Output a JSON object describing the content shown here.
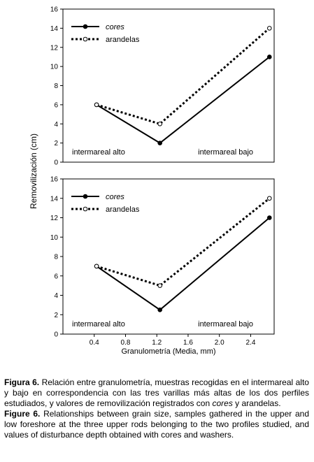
{
  "axis_labels": {
    "y": "Removilización (cm)",
    "x": "Granulometría (Media, mm)"
  },
  "chart_data": [
    {
      "type": "line",
      "xlim": [
        0,
        2.7
      ],
      "ylim": [
        0,
        16
      ],
      "yticks": [
        0,
        2,
        4,
        6,
        8,
        10,
        12,
        14,
        16
      ],
      "x": [
        0.43,
        1.24,
        2.64
      ],
      "series": [
        {
          "name": "cores",
          "color": "#000000",
          "line_style": "solid",
          "marker": "filled",
          "values": [
            6,
            2,
            11
          ]
        },
        {
          "name": "arandelas",
          "color": "#000000",
          "line_style": "dotted",
          "marker": "open",
          "values": [
            6,
            4,
            14
          ]
        }
      ],
      "annotations": [
        "intermareal alto",
        "intermareal bajo"
      ]
    },
    {
      "type": "line",
      "xlim": [
        0,
        2.7
      ],
      "ylim": [
        0,
        16
      ],
      "yticks": [
        0,
        2,
        4,
        6,
        8,
        10,
        12,
        14,
        16
      ],
      "xticks": [
        0.4,
        0.8,
        1.2,
        1.6,
        {
          "value": 2,
          "label": "2.0"
        },
        2.4
      ],
      "x": [
        0.43,
        1.24,
        2.64
      ],
      "series": [
        {
          "name": "cores",
          "color": "#000000",
          "line_style": "solid",
          "marker": "filled",
          "values": [
            7,
            2.5,
            12
          ]
        },
        {
          "name": "arandelas",
          "color": "#000000",
          "line_style": "dotted",
          "marker": "open",
          "values": [
            7,
            5,
            14
          ]
        }
      ],
      "annotations": [
        "intermareal alto",
        "intermareal bajo"
      ]
    }
  ],
  "caption": {
    "es": {
      "label": "Figura 6.",
      "text1": " Relación entre granulometría, muestras recogidas en el intermareal alto y bajo en correspondencia con las tres varillas más altas de los dos perfiles estudiados, y valores de removilización registrados con ",
      "italic": "cores",
      "text2": " y arandelas."
    },
    "en": {
      "label": "Figure 6.",
      "text": " Relationships between grain size, samples gathered in the upper and low foreshore at the three upper rods belonging to the two profiles studied, and values of disturbance depth obtained with cores and washers."
    }
  }
}
